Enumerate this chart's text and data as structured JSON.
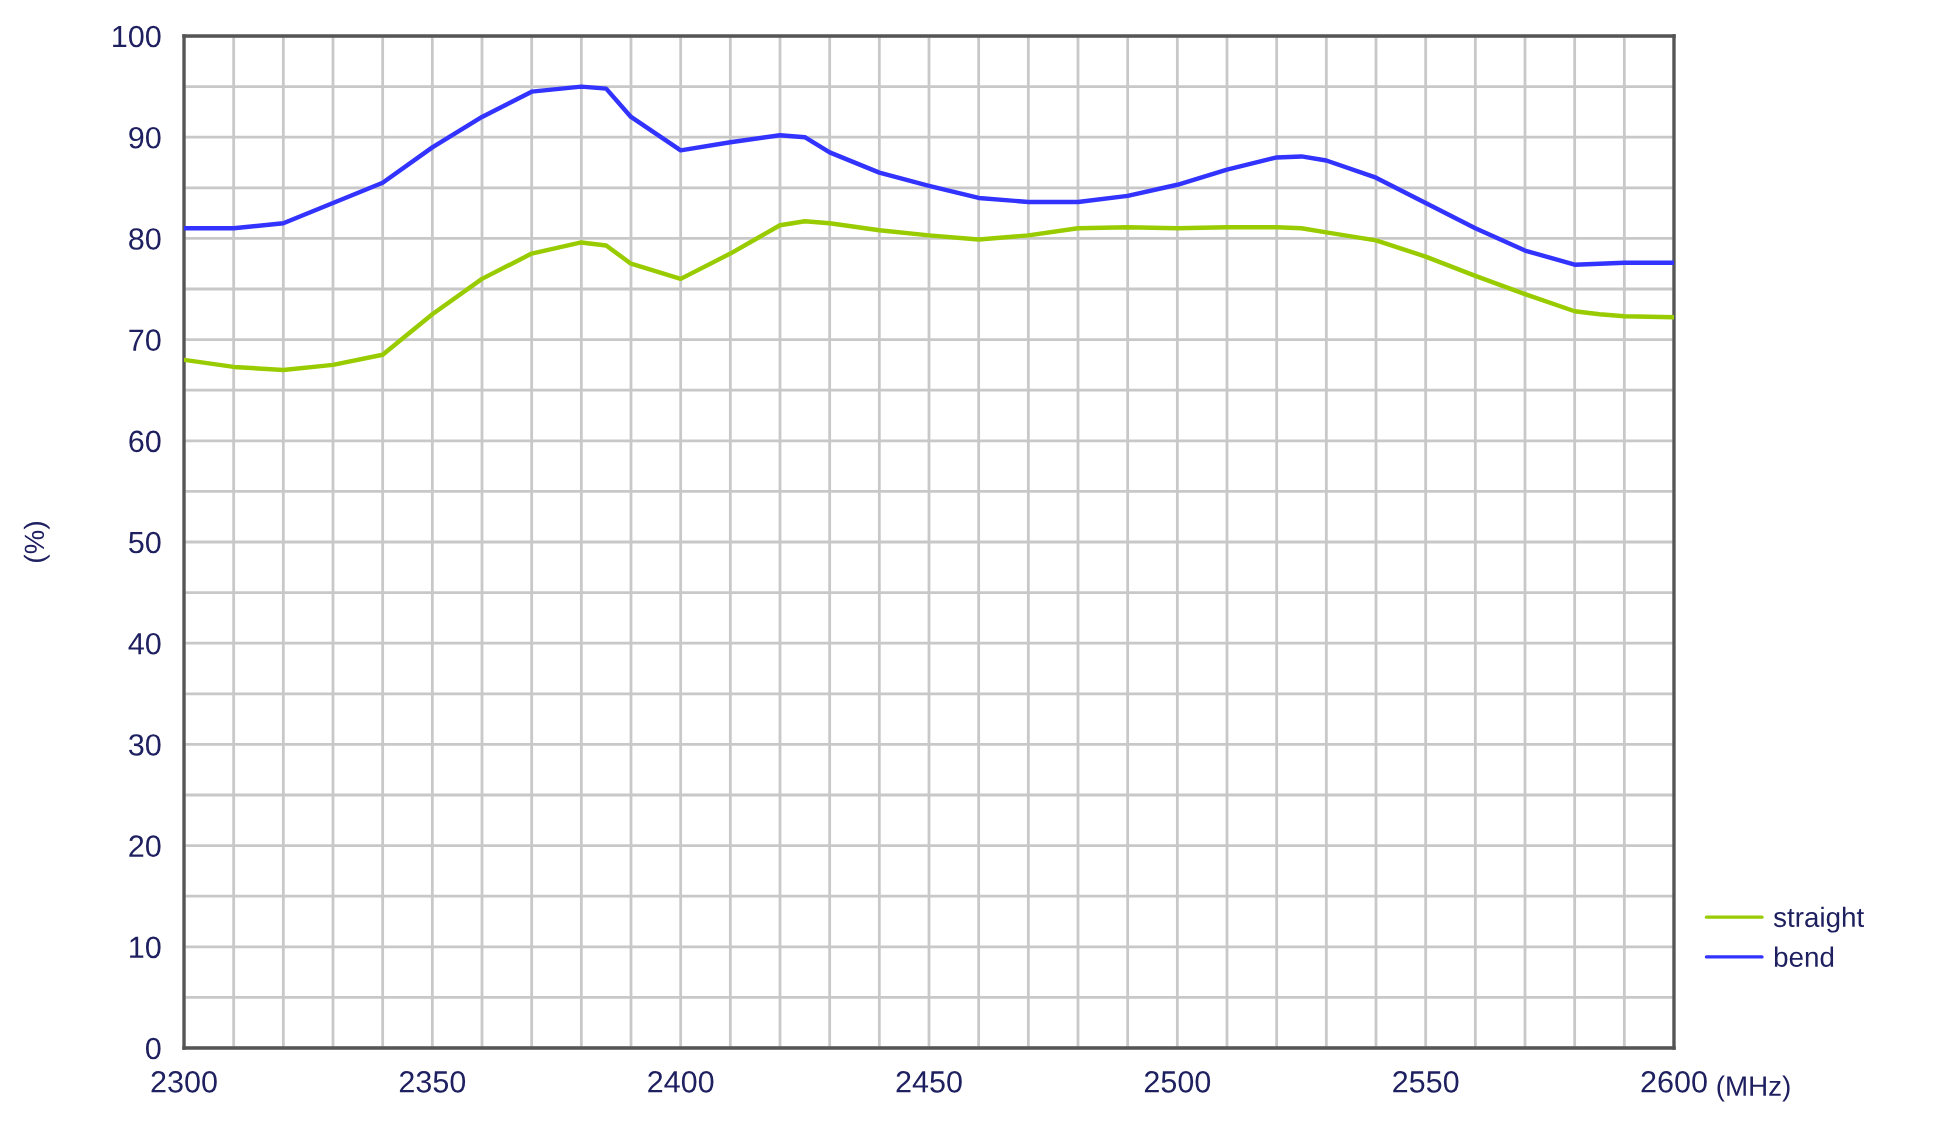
{
  "chart_data": {
    "type": "line",
    "xlabel": "(MHz)",
    "ylabel": "(%)",
    "x": [
      2300,
      2310,
      2320,
      2330,
      2340,
      2350,
      2360,
      2370,
      2380,
      2385,
      2390,
      2400,
      2410,
      2420,
      2425,
      2430,
      2440,
      2450,
      2460,
      2470,
      2480,
      2490,
      2500,
      2510,
      2520,
      2525,
      2530,
      2540,
      2550,
      2560,
      2570,
      2580,
      2585,
      2590,
      2600
    ],
    "series": [
      {
        "name": "straight",
        "color": "#99cc00",
        "values": [
          68,
          67.3,
          67,
          67.5,
          68.5,
          72.5,
          76,
          78.5,
          79.6,
          79.3,
          77.5,
          76,
          78.5,
          81.3,
          81.7,
          81.5,
          80.8,
          80.3,
          79.9,
          80.3,
          81,
          81.1,
          81,
          81.1,
          81.1,
          81,
          80.6,
          79.8,
          78.2,
          76.3,
          74.5,
          72.8,
          72.5,
          72.3,
          72.2
        ]
      },
      {
        "name": "bend",
        "color": "#3333ff",
        "values": [
          81,
          81,
          81.5,
          83.5,
          85.5,
          89,
          92,
          94.5,
          95,
          94.8,
          92,
          88.7,
          89.5,
          90.2,
          90,
          88.5,
          86.5,
          85.2,
          84,
          83.6,
          83.6,
          84.2,
          85.3,
          86.8,
          88,
          88.1,
          87.7,
          86,
          83.5,
          81,
          78.8,
          77.4,
          77.5,
          77.6,
          77.6
        ]
      }
    ],
    "xlim": [
      2300,
      2600
    ],
    "xticks": [
      2300,
      2350,
      2400,
      2450,
      2500,
      2550,
      2600
    ],
    "ylim": [
      0,
      100
    ],
    "yticks": [
      0,
      10,
      20,
      30,
      40,
      50,
      60,
      70,
      80,
      90,
      100
    ],
    "grid": true,
    "legend": "bottom right",
    "marker": "none",
    "line_style": "solid"
  }
}
